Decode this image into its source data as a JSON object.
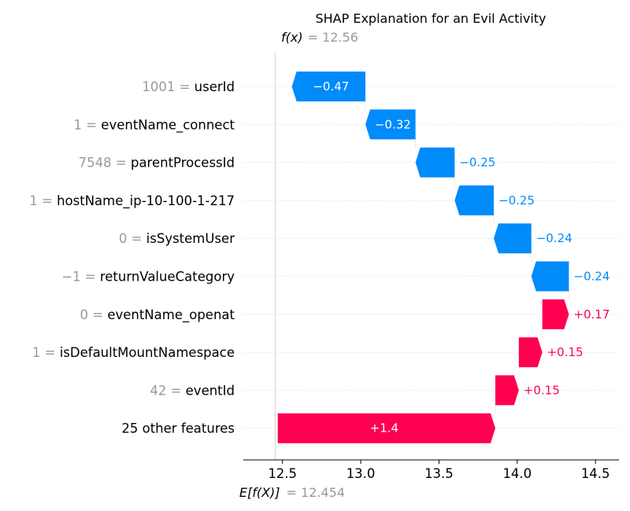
{
  "chart_data": {
    "type": "waterfall",
    "title": "SHAP Explanation for an Evil Activity",
    "fx_label": "f(x)",
    "fx_value": "12.56",
    "efx_label": "E[f(X)]",
    "efx_value": "12.454",
    "base_value": 12.454,
    "output_value": 12.56,
    "xlim": [
      12.25,
      14.65
    ],
    "xticks": [
      "12.5",
      "13.0",
      "13.5",
      "14.0",
      "14.5"
    ],
    "xtick_values": [
      12.5,
      13.0,
      13.5,
      14.0,
      14.5
    ],
    "features": [
      {
        "value": "1001",
        "name": "userId",
        "shap": -0.47,
        "label": "−0.47"
      },
      {
        "value": "1",
        "name": "eventName_connect",
        "shap": -0.32,
        "label": "−0.32"
      },
      {
        "value": "7548",
        "name": "parentProcessId",
        "shap": -0.25,
        "label": "−0.25"
      },
      {
        "value": "1",
        "name": "hostName_ip-10-100-1-217",
        "shap": -0.25,
        "label": "−0.25"
      },
      {
        "value": "0",
        "name": "isSystemUser",
        "shap": -0.24,
        "label": "−0.24"
      },
      {
        "value": "−1",
        "name": "returnValueCategory",
        "shap": -0.24,
        "label": "−0.24"
      },
      {
        "value": "0",
        "name": "eventName_openat",
        "shap": 0.17,
        "label": "+0.17"
      },
      {
        "value": "1",
        "name": "isDefaultMountNamespace",
        "shap": 0.15,
        "label": "+0.15"
      },
      {
        "value": "42",
        "name": "eventId",
        "shap": 0.15,
        "label": "+0.15"
      },
      {
        "value": "",
        "name": "25 other features",
        "shap": 1.39,
        "label": "+1.4"
      }
    ],
    "colors": {
      "positive": "#ff0051",
      "negative": "#008bfb",
      "gray": "#999999"
    }
  }
}
